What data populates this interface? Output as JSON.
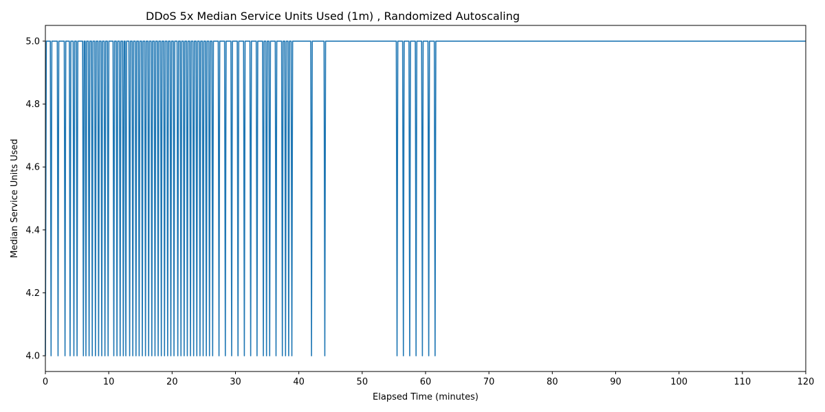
{
  "chart_data": {
    "type": "line",
    "title": "DDoS 5x Median Service Units Used (1m) , Randomized Autoscaling",
    "xlabel": "Elapsed Time (minutes)",
    "ylabel": "Median Service Units Used",
    "xlim": [
      0,
      120
    ],
    "ylim": [
      3.95,
      5.05
    ],
    "xticks": [
      0,
      10,
      20,
      30,
      40,
      50,
      60,
      70,
      80,
      90,
      100,
      110,
      120
    ],
    "yticks": [
      4.0,
      4.2,
      4.4,
      4.6,
      4.8,
      5.0
    ],
    "ytick_labels": [
      "4.0",
      "4.2",
      "4.4",
      "4.6",
      "4.8",
      "5.0"
    ],
    "grid": false,
    "series": [
      {
        "color": "#1f77b4",
        "baseline": 5.0,
        "dip_value": 4.0,
        "dips_at_x": [
          0.9,
          2.0,
          3.1,
          3.9,
          4.5,
          5.0,
          6.0,
          6.4,
          6.9,
          7.4,
          7.9,
          8.4,
          8.9,
          9.4,
          9.9,
          10.8,
          11.3,
          11.8,
          12.3,
          12.7,
          13.3,
          13.8,
          14.3,
          14.8,
          15.3,
          15.8,
          16.3,
          16.8,
          17.3,
          17.8,
          18.3,
          18.8,
          19.3,
          19.8,
          20.3,
          20.9,
          21.4,
          21.9,
          22.4,
          22.9,
          23.4,
          23.9,
          24.4,
          24.9,
          25.4,
          25.9,
          26.4,
          27.4,
          28.4,
          29.4,
          30.4,
          31.4,
          32.4,
          33.4,
          34.4,
          34.9,
          35.4,
          36.4,
          37.4,
          37.9,
          38.4,
          38.9,
          42.0,
          44.1,
          55.5,
          56.5,
          57.5,
          58.5,
          59.5,
          60.5,
          61.5
        ],
        "x_end": 120
      }
    ]
  }
}
